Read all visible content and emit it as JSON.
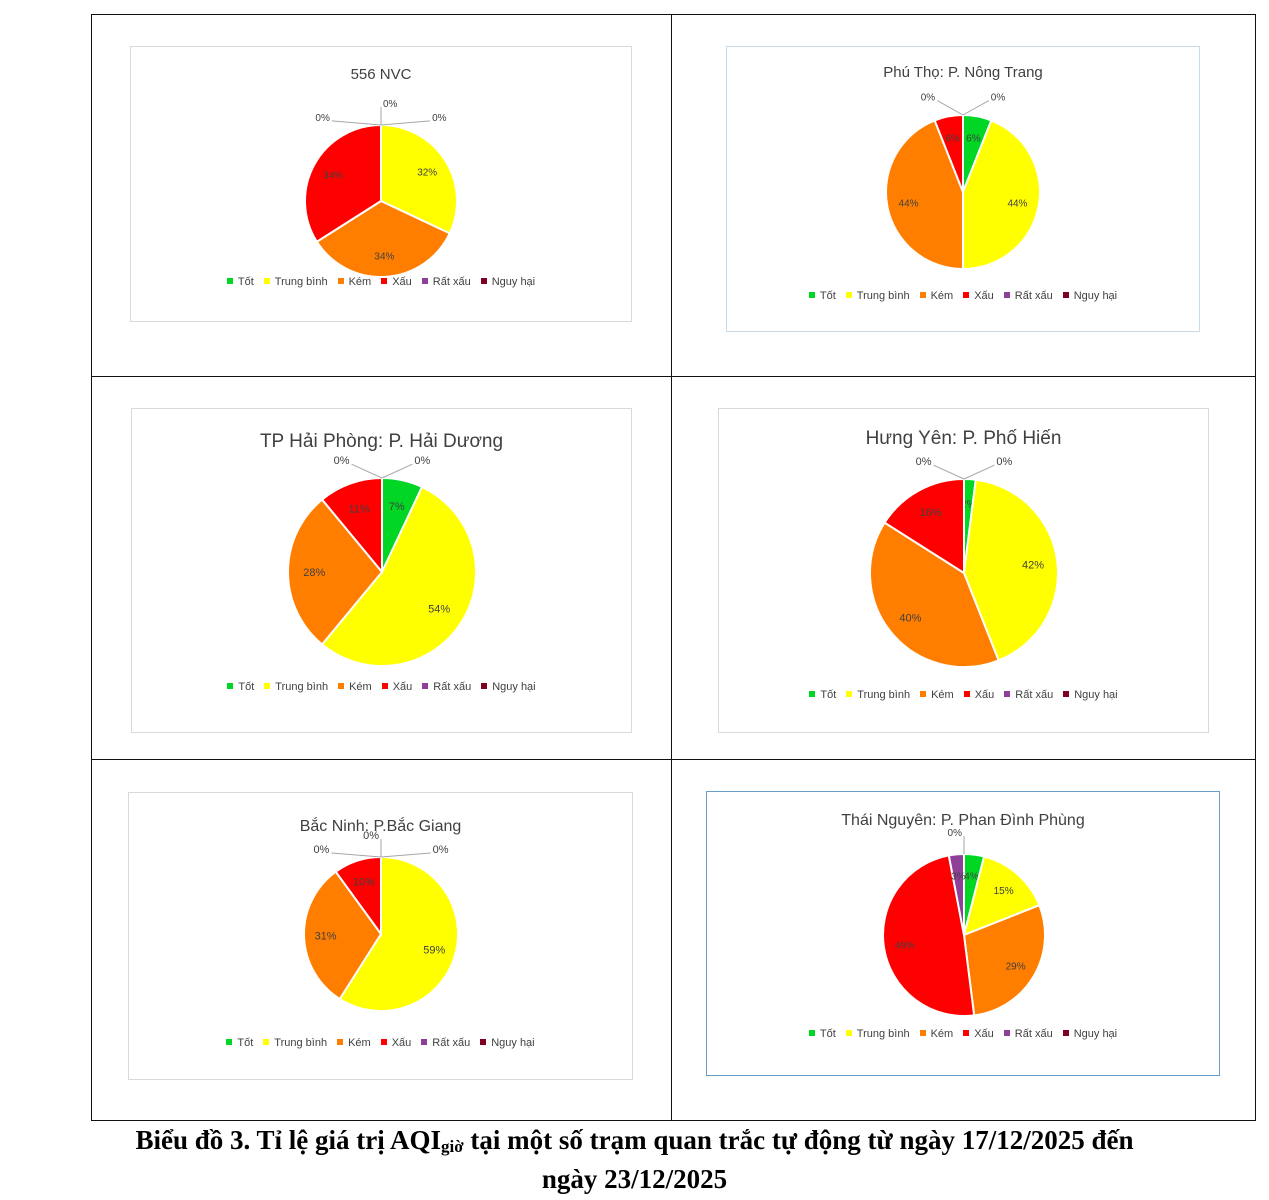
{
  "category_colors": {
    "Tốt": "#00d623",
    "Trung bình": "#ffff00",
    "Kém": "#ff7e00",
    "Xấu": "#ff0000",
    "Rất xấu": "#8f3f97",
    "Nguy hại": "#7e0023"
  },
  "caption": {
    "line1_prefix": "Biểu đồ 3.  Tỉ lệ giá trị AQI",
    "line1_sub": "giờ",
    "line1_suffix": " tại một số trạm quan trắc tự động từ ngày 17/12/2025 đến",
    "line2": "ngày 23/12/2025"
  },
  "chart_data": [
    {
      "type": "pie",
      "title": "556 NVC",
      "categories": [
        "Tốt",
        "Trung bình",
        "Kém",
        "Xấu",
        "Rất xấu",
        "Nguy hại"
      ],
      "values": [
        0,
        32,
        34,
        34,
        0,
        0
      ],
      "labels": [
        "0%",
        "32%",
        "34%",
        "34%",
        "0%",
        "0%"
      ],
      "legend": "bottom"
    },
    {
      "type": "pie",
      "title": "Phú Thọ: P. Nông Trang",
      "categories": [
        "Tốt",
        "Trung bình",
        "Kém",
        "Xấu",
        "Rất xấu",
        "Nguy hại"
      ],
      "values": [
        6,
        44,
        44,
        6,
        0,
        0
      ],
      "labels": [
        "6%",
        "44%",
        "44%",
        "6%",
        "0%",
        "0%"
      ],
      "legend": "bottom"
    },
    {
      "type": "pie",
      "title": "TP Hải Phòng: P. Hải Dương",
      "categories": [
        "Tốt",
        "Trung bình",
        "Kém",
        "Xấu",
        "Rất xấu",
        "Nguy hại"
      ],
      "values": [
        7,
        54,
        28,
        11,
        0,
        0
      ],
      "labels": [
        "7%",
        "54%",
        "28%",
        "11%",
        "0%",
        "0%"
      ],
      "legend": "bottom"
    },
    {
      "type": "pie",
      "title": "Hưng Yên: P. Phố Hiến",
      "categories": [
        "Tốt",
        "Trung bình",
        "Kém",
        "Xấu",
        "Rất xấu",
        "Nguy hại"
      ],
      "values": [
        2,
        42,
        40,
        16,
        0,
        0
      ],
      "labels": [
        "2%",
        "42%",
        "40%",
        "16%",
        "0%",
        "0%"
      ],
      "legend": "bottom"
    },
    {
      "type": "pie",
      "title": "Bắc Ninh: P.Bắc Giang",
      "categories": [
        "Tốt",
        "Trung bình",
        "Kém",
        "Xấu",
        "Rất xấu",
        "Nguy hại"
      ],
      "values": [
        0,
        59,
        31,
        10,
        0,
        0
      ],
      "labels": [
        "0%",
        "59%",
        "31%",
        "10%",
        "0%",
        "0%"
      ],
      "legend": "bottom"
    },
    {
      "type": "pie",
      "title": "Thái Nguyên: P. Phan Đình Phùng",
      "categories": [
        "Tốt",
        "Trung bình",
        "Kém",
        "Xấu",
        "Rất xấu",
        "Nguy hại"
      ],
      "values": [
        4,
        15,
        29,
        49,
        3,
        0
      ],
      "labels": [
        "4%",
        "15%",
        "29%",
        "49%",
        "3%",
        "0%"
      ],
      "legend": "bottom"
    }
  ]
}
